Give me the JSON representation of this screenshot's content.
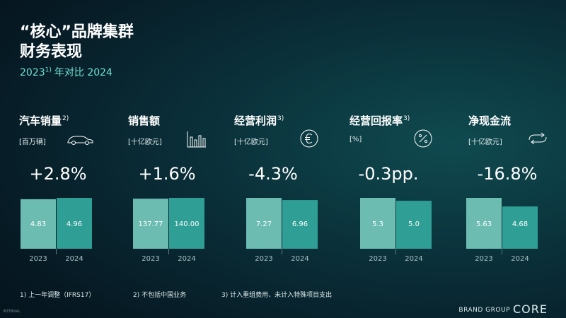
{
  "header": {
    "title_line1": "“核心”品牌集群",
    "title_line2": "财务表现",
    "subtitle_year_a": "2023",
    "subtitle_sup": "1)",
    "subtitle_rest": "年对比 2024"
  },
  "kpis": [
    {
      "title": "汽车销量",
      "sup": "2)",
      "unit": "[百万辆]",
      "change": "+2.8%",
      "icon": "car-icon"
    },
    {
      "title": "销售额",
      "sup": "",
      "unit": "[十亿欧元]",
      "change": "+1.6%",
      "icon": "bar-chart-icon"
    },
    {
      "title": "经营利润",
      "sup": "3)",
      "unit": "[十亿欧元]",
      "change": "-4.3%",
      "icon": "euro-icon"
    },
    {
      "title": "经营回报率",
      "sup": "3)",
      "unit": "[%]",
      "change": "-0.3pp.",
      "icon": "percent-icon"
    },
    {
      "title": "净现金流",
      "sup": "",
      "unit": "[十亿欧元]",
      "change": "-16.8%",
      "icon": "cash-flow-icon"
    }
  ],
  "chart_data": [
    {
      "type": "bar",
      "title": "汽车销量",
      "unit": "[百万辆]",
      "categories": [
        "2023",
        "2024"
      ],
      "values": [
        4.83,
        4.96
      ],
      "labels": [
        "4.83",
        "4.96"
      ],
      "change": "+2.8%"
    },
    {
      "type": "bar",
      "title": "销售额",
      "unit": "[十亿欧元]",
      "categories": [
        "2023",
        "2024"
      ],
      "values": [
        137.77,
        140.0
      ],
      "labels": [
        "137.77",
        "140.00"
      ],
      "change": "+1.6%"
    },
    {
      "type": "bar",
      "title": "经营利润",
      "unit": "[十亿欧元]",
      "categories": [
        "2023",
        "2024"
      ],
      "values": [
        7.27,
        6.96
      ],
      "labels": [
        "7.27",
        "6.96"
      ],
      "change": "-4.3%"
    },
    {
      "type": "bar",
      "title": "经营回报率",
      "unit": "[%]",
      "categories": [
        "2023",
        "2024"
      ],
      "values": [
        5.3,
        5.0
      ],
      "labels": [
        "5.3",
        "5.0"
      ],
      "change": "-0.3pp."
    },
    {
      "type": "bar",
      "title": "净现金流",
      "unit": "[十亿欧元]",
      "categories": [
        "2023",
        "2024"
      ],
      "values": [
        5.63,
        4.68
      ],
      "labels": [
        "5.63",
        "4.68"
      ],
      "change": "-16.8%"
    }
  ],
  "colors": {
    "bar_2023": "#6cbcb2",
    "bar_2024": "#2f9e95",
    "accent": "#6fe0d3"
  },
  "footnotes": {
    "fn1": "1) 上一年调整（IFRS17）",
    "fn2": "2) 不包括中国业务",
    "fn3": "3) 计入重组费用、未计入特殊项目支出"
  },
  "brand": {
    "prefix": "BRAND GROUP",
    "name": "CORE"
  },
  "corner_text": "INTERNAL"
}
